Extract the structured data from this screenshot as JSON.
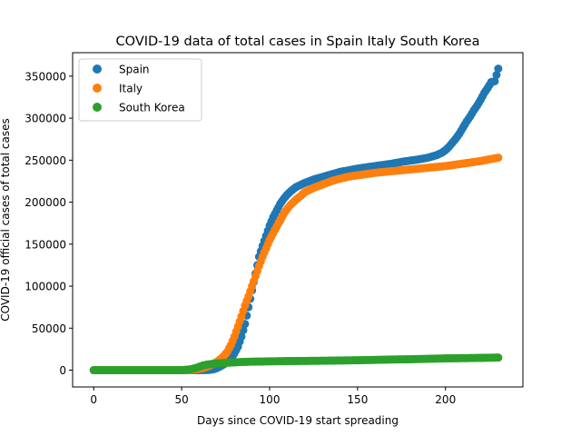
{
  "chart_data": {
    "type": "scatter",
    "title": "COVID-19 data of total cases in Spain Italy South Korea",
    "xlabel": "Days since COVID-19 start spreading",
    "ylabel": "COVID-19 official cases of total cases",
    "xlim": [
      -12,
      244
    ],
    "ylim": [
      -20000,
      378000
    ],
    "xticks": [
      0,
      50,
      100,
      150,
      200
    ],
    "yticks": [
      0,
      50000,
      100000,
      150000,
      200000,
      250000,
      300000,
      350000
    ],
    "ytick_labels": [
      "0",
      "50000",
      "100000",
      "150000",
      "200000",
      "250000",
      "300000",
      "350000"
    ],
    "grid": false,
    "legend": "top-left",
    "series": [
      {
        "name": "Spain",
        "color": "#1f77b4",
        "points": [
          [
            0,
            0
          ],
          [
            30,
            0
          ],
          [
            55,
            0
          ],
          [
            60,
            0
          ],
          [
            65,
            200
          ],
          [
            68,
            1000
          ],
          [
            70,
            2500
          ],
          [
            72,
            4500
          ],
          [
            74,
            7000
          ],
          [
            76,
            10000
          ],
          [
            78,
            14000
          ],
          [
            80,
            20000
          ],
          [
            82,
            28000
          ],
          [
            84,
            40000
          ],
          [
            86,
            55000
          ],
          [
            88,
            75000
          ],
          [
            90,
            95000
          ],
          [
            92,
            115000
          ],
          [
            94,
            135000
          ],
          [
            96,
            148000
          ],
          [
            98,
            160000
          ],
          [
            100,
            172000
          ],
          [
            102,
            182000
          ],
          [
            104,
            190000
          ],
          [
            106,
            198000
          ],
          [
            108,
            204000
          ],
          [
            110,
            209000
          ],
          [
            112,
            213000
          ],
          [
            115,
            218000
          ],
          [
            120,
            223000
          ],
          [
            125,
            227000
          ],
          [
            130,
            230000
          ],
          [
            135,
            233000
          ],
          [
            140,
            236000
          ],
          [
            145,
            238000
          ],
          [
            150,
            240000
          ],
          [
            155,
            241500
          ],
          [
            160,
            243000
          ],
          [
            165,
            244500
          ],
          [
            170,
            246000
          ],
          [
            175,
            248000
          ],
          [
            180,
            249500
          ],
          [
            185,
            251000
          ],
          [
            190,
            253000
          ],
          [
            195,
            256000
          ],
          [
            198,
            259000
          ],
          [
            200,
            262000
          ],
          [
            202,
            266000
          ],
          [
            204,
            271000
          ],
          [
            206,
            276000
          ],
          [
            208,
            282000
          ],
          [
            210,
            289000
          ],
          [
            212,
            296000
          ],
          [
            214,
            302000
          ],
          [
            216,
            309000
          ],
          [
            218,
            315000
          ],
          [
            220,
            322000
          ],
          [
            222,
            330000
          ],
          [
            224,
            336000
          ],
          [
            226,
            343000
          ],
          [
            228,
            344000
          ],
          [
            230,
            359000
          ]
        ]
      },
      {
        "name": "Italy",
        "color": "#ff7f0e",
        "points": [
          [
            0,
            0
          ],
          [
            30,
            0
          ],
          [
            50,
            0
          ],
          [
            55,
            200
          ],
          [
            58,
            800
          ],
          [
            60,
            1700
          ],
          [
            62,
            2500
          ],
          [
            64,
            3800
          ],
          [
            66,
            5500
          ],
          [
            68,
            7500
          ],
          [
            70,
            10000
          ],
          [
            72,
            13000
          ],
          [
            74,
            17000
          ],
          [
            76,
            22000
          ],
          [
            78,
            30000
          ],
          [
            80,
            40000
          ],
          [
            82,
            52000
          ],
          [
            84,
            64000
          ],
          [
            86,
            77000
          ],
          [
            88,
            88000
          ],
          [
            90,
            100000
          ],
          [
            92,
            112000
          ],
          [
            94,
            124000
          ],
          [
            96,
            135000
          ],
          [
            98,
            145000
          ],
          [
            100,
            155000
          ],
          [
            102,
            163000
          ],
          [
            104,
            171000
          ],
          [
            106,
            178000
          ],
          [
            108,
            186000
          ],
          [
            110,
            192000
          ],
          [
            112,
            197000
          ],
          [
            115,
            203000
          ],
          [
            118,
            208000
          ],
          [
            120,
            212000
          ],
          [
            125,
            217000
          ],
          [
            130,
            221000
          ],
          [
            135,
            225000
          ],
          [
            140,
            228000
          ],
          [
            145,
            230500
          ],
          [
            150,
            232000
          ],
          [
            155,
            233500
          ],
          [
            160,
            235000
          ],
          [
            165,
            236000
          ],
          [
            170,
            237000
          ],
          [
            175,
            238000
          ],
          [
            180,
            239000
          ],
          [
            185,
            240000
          ],
          [
            190,
            241000
          ],
          [
            195,
            242000
          ],
          [
            200,
            243000
          ],
          [
            205,
            244500
          ],
          [
            210,
            246000
          ],
          [
            215,
            247500
          ],
          [
            220,
            249000
          ],
          [
            225,
            251000
          ],
          [
            230,
            253000
          ]
        ]
      },
      {
        "name": "South Korea",
        "color": "#2ca02c",
        "points": [
          [
            0,
            0
          ],
          [
            10,
            0
          ],
          [
            20,
            0
          ],
          [
            30,
            0
          ],
          [
            40,
            0
          ],
          [
            45,
            0
          ],
          [
            50,
            0
          ],
          [
            55,
            1000
          ],
          [
            58,
            2500
          ],
          [
            60,
            4000
          ],
          [
            62,
            5500
          ],
          [
            64,
            6500
          ],
          [
            66,
            7000
          ],
          [
            68,
            7500
          ],
          [
            70,
            8000
          ],
          [
            72,
            8300
          ],
          [
            75,
            8700
          ],
          [
            80,
            9300
          ],
          [
            85,
            9800
          ],
          [
            90,
            10100
          ],
          [
            95,
            10300
          ],
          [
            100,
            10500
          ],
          [
            110,
            10800
          ],
          [
            120,
            11000
          ],
          [
            130,
            11200
          ],
          [
            140,
            11500
          ],
          [
            150,
            11800
          ],
          [
            160,
            12200
          ],
          [
            170,
            12700
          ],
          [
            180,
            13000
          ],
          [
            190,
            13500
          ],
          [
            200,
            14000
          ],
          [
            210,
            14300
          ],
          [
            220,
            14600
          ],
          [
            230,
            15000
          ]
        ]
      }
    ]
  }
}
